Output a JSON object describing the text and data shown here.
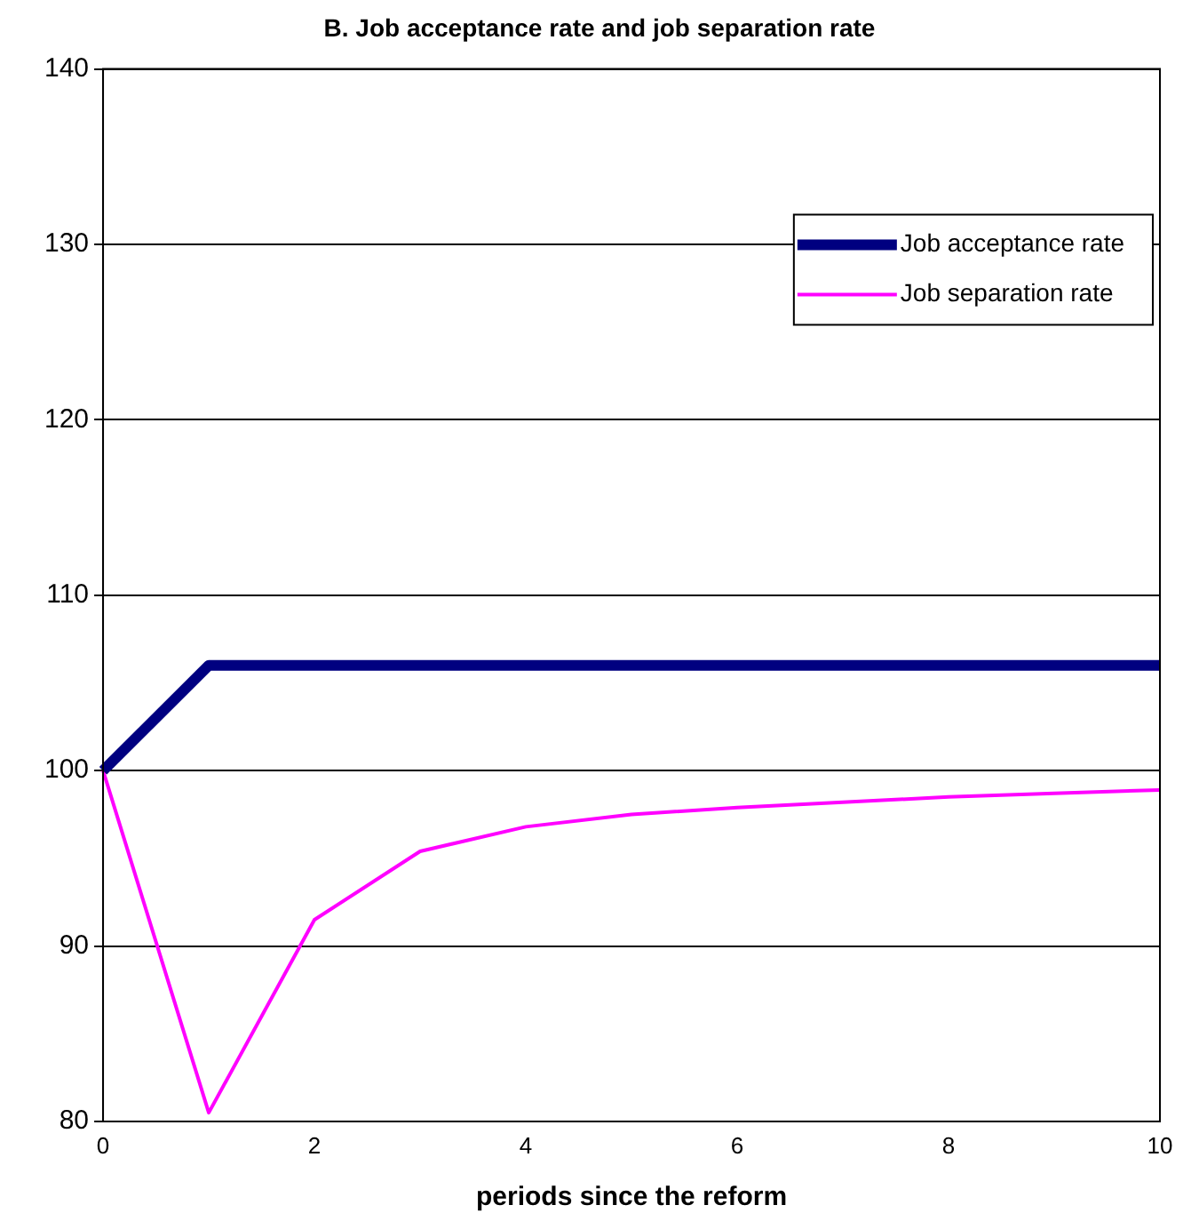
{
  "chart_data": {
    "type": "line",
    "title": "B. Job acceptance rate and job separation rate",
    "xlabel": "periods since the reform",
    "x": [
      0,
      1,
      2,
      3,
      4,
      5,
      6,
      7,
      8,
      9,
      10
    ],
    "series": [
      {
        "name": "Job acceptance rate",
        "color": "#000080",
        "values": [
          100,
          106,
          106,
          106,
          106,
          106,
          106,
          106,
          106,
          106,
          106
        ]
      },
      {
        "name": "Job separation rate",
        "color": "#ff00ff",
        "values": [
          100,
          80.5,
          91.5,
          95.4,
          96.8,
          97.5,
          97.9,
          98.2,
          98.5,
          98.7,
          98.9
        ]
      }
    ],
    "xlim": [
      0,
      10
    ],
    "xticks": [
      0,
      2,
      4,
      6,
      8,
      10
    ],
    "ylim": [
      80,
      140
    ],
    "yticks": [
      80,
      90,
      100,
      110,
      120,
      130,
      140
    ],
    "grid": "y",
    "legend": "top right",
    "marker": "none",
    "line_style": "solid"
  }
}
